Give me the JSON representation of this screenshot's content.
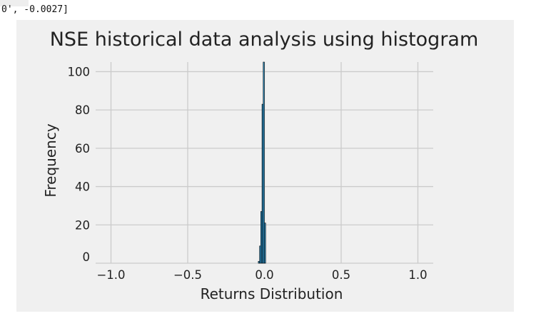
{
  "cell_output": {
    "text": "0', -0.0027]"
  },
  "chart_data": {
    "type": "bar",
    "title": "NSE historical data analysis using histogram",
    "xlabel": "Returns Distribution",
    "ylabel": "Frequency",
    "xlim": [
      -1.1,
      1.1
    ],
    "ylim": [
      0,
      105
    ],
    "xticks": [
      -1.0,
      -0.5,
      0.0,
      0.5,
      1.0
    ],
    "xtick_labels": [
      "−1.0",
      "−0.5",
      "0.0",
      "0.5",
      "1.0"
    ],
    "yticks": [
      0,
      20,
      40,
      60,
      80,
      100
    ],
    "ytick_labels": [
      "0",
      "20",
      "40",
      "60",
      "80",
      "100"
    ],
    "grid": true,
    "bar_color": "#2b8cbf",
    "background_color": "#f0f0f0",
    "bins": [
      {
        "x0": -0.04,
        "x1": -0.032,
        "count": 1
      },
      {
        "x0": -0.032,
        "x1": -0.024,
        "count": 9
      },
      {
        "x0": -0.024,
        "x1": -0.016,
        "count": 27
      },
      {
        "x0": -0.016,
        "x1": -0.008,
        "count": 83
      },
      {
        "x0": -0.008,
        "x1": 0.0,
        "count": 105
      },
      {
        "x0": 0.0,
        "x1": 0.008,
        "count": 21
      }
    ]
  }
}
